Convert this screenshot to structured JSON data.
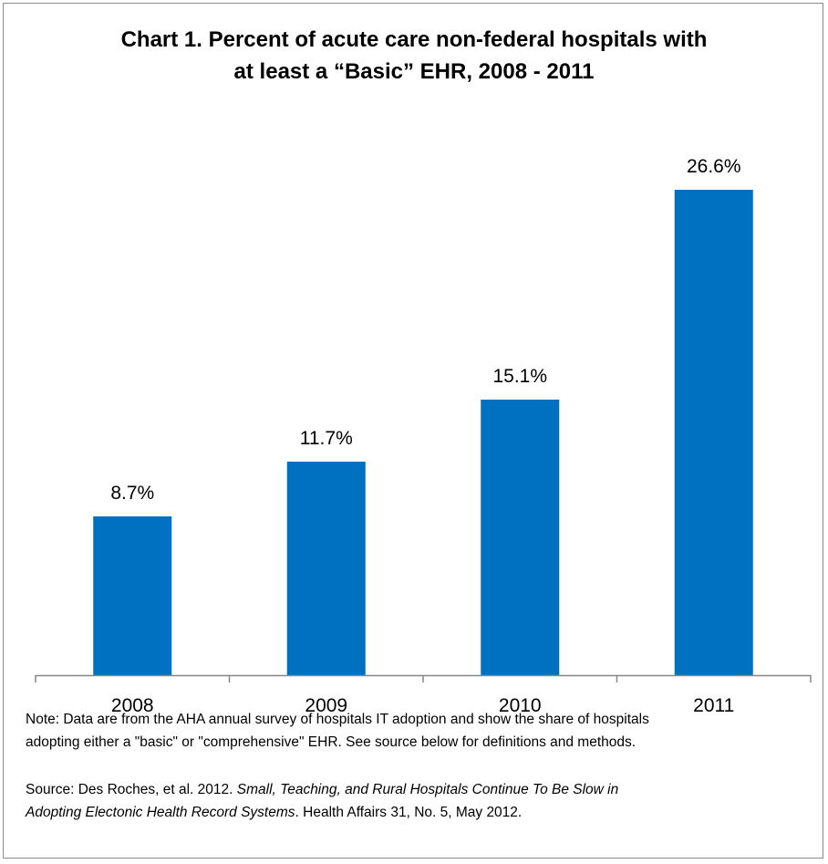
{
  "chart_data": {
    "type": "bar",
    "title_line1": "Chart 1. Percent of acute care non-federal hospitals with",
    "title_line2": "at least a “Basic” EHR, 2008 - 2011",
    "categories": [
      "2008",
      "2009",
      "2010",
      "2011"
    ],
    "values": [
      8.7,
      11.7,
      15.1,
      26.6
    ],
    "data_labels": [
      "8.7%",
      "11.7%",
      "15.1%",
      "26.6%"
    ],
    "ylim": [
      0,
      30
    ],
    "xlabel": "",
    "ylabel": "",
    "grid": false,
    "bar_color": "#0070C0"
  },
  "note": {
    "line1": "Note: Data are from the AHA annual survey of hospitals IT adoption and show the share of hospitals",
    "line2": "adopting either a \"basic\" or \"comprehensive\" EHR. See source below for definitions and methods."
  },
  "source": {
    "prefix": "Source: Des Roches, et al. 2012.  ",
    "italic_line1": "Small, Teaching, and Rural Hospitals Continue To Be Slow in",
    "italic_line2": "Adopting Electonic Health Record Systems",
    "suffix": ". Health Affairs  31, No. 5, May 2012."
  }
}
